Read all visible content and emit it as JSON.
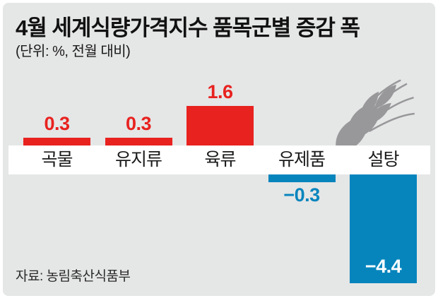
{
  "header": {
    "title": "4월 세계식량가격지수 품목군별 증감 폭",
    "unit_note": "(단위: %, 전월 대비)"
  },
  "chart_data": {
    "type": "bar",
    "title": "4월 세계식량가격지수 품목군별 증감 폭",
    "unit": "%, 전월 대비",
    "categories": [
      "곡물",
      "유지류",
      "육류",
      "유제품",
      "설탕"
    ],
    "values": [
      0.3,
      0.3,
      1.6,
      -0.3,
      -4.4
    ],
    "items": [
      {
        "label": "곡물",
        "value": 0.3,
        "value_label": "0.3"
      },
      {
        "label": "유지류",
        "value": 0.3,
        "value_label": "0.3"
      },
      {
        "label": "육류",
        "value": 1.6,
        "value_label": "1.6"
      },
      {
        "label": "유제품",
        "value": -0.3,
        "value_label": "−0.3"
      },
      {
        "label": "설탕",
        "value": -4.4,
        "value_label": "−4.4"
      }
    ],
    "colors": {
      "positive": "#e8221f",
      "negative": "#0685bd",
      "background": "#e5e6e6"
    },
    "baseline": "zero line hidden behind white category band",
    "grid": "off",
    "legend": "none"
  },
  "footer": {
    "source": "자료: 농림축산식품부"
  },
  "icons": {
    "wheat": "wheat-ear-icon"
  }
}
